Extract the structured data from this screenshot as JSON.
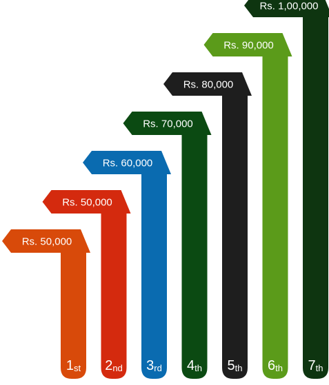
{
  "chart_data": {
    "type": "bar",
    "categories": [
      "1st",
      "2nd",
      "3rd",
      "4th",
      "5th",
      "6th",
      "7th"
    ],
    "rank_numbers": [
      "1",
      "2",
      "3",
      "4",
      "5",
      "6",
      "7"
    ],
    "rank_suffixes": [
      "st",
      "nd",
      "rd",
      "th",
      "th",
      "th",
      "th"
    ],
    "value_labels": [
      "Rs. 50,000",
      "Rs. 50,000",
      "Rs. 60,000",
      "Rs. 70,000",
      "Rs. 80,000",
      "Rs. 90,000",
      "Rs. 1,00,000"
    ],
    "values": [
      50000,
      50000,
      60000,
      70000,
      80000,
      90000,
      100000
    ],
    "colors": [
      "#d84a0a",
      "#d42a0e",
      "#0a6bb0",
      "#0b4a12",
      "#1e1e1e",
      "#5b9b1a",
      "#0e3510"
    ],
    "legend": "none",
    "grid": false
  }
}
